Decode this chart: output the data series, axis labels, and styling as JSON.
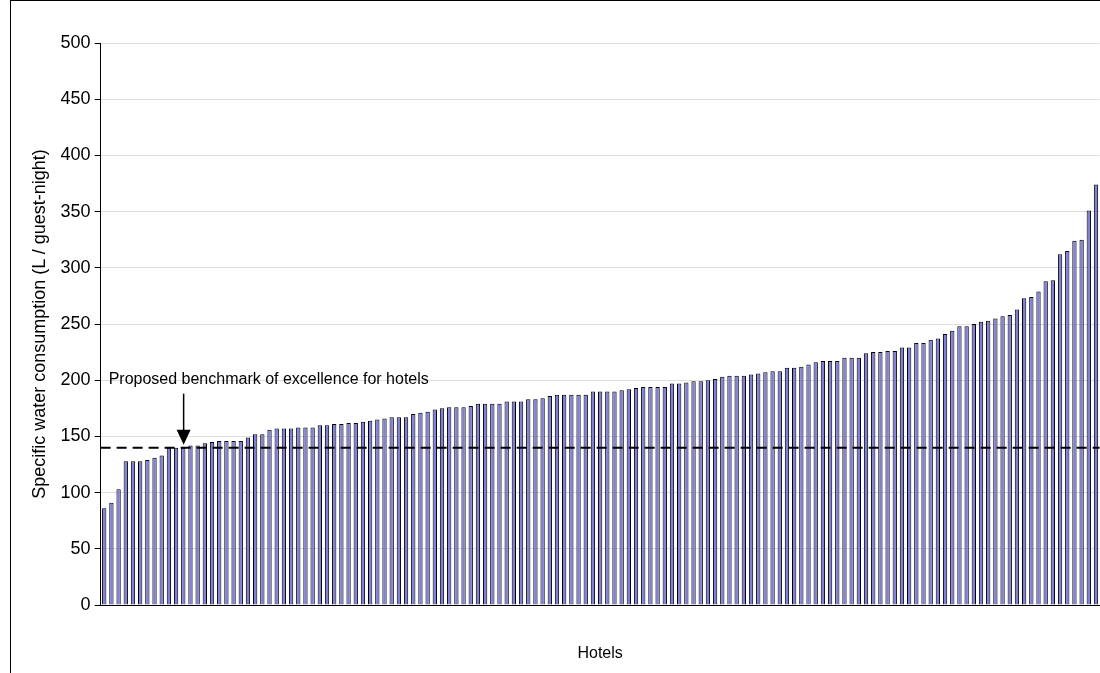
{
  "chart_data": {
    "type": "bar",
    "xlabel": "Hotels",
    "ylabel": "Specific water consumption (L / guest-night)",
    "categories": [
      null,
      null,
      null,
      null,
      null,
      null,
      null,
      null,
      null,
      null,
      null,
      null,
      null,
      null,
      null,
      null,
      null,
      null,
      null,
      null,
      null,
      null,
      null,
      null,
      null,
      null,
      null,
      null,
      null,
      null,
      null,
      null,
      null,
      null,
      null,
      null,
      null,
      null,
      null,
      null,
      null,
      null,
      null,
      null,
      null,
      null,
      null,
      null,
      null,
      null,
      null,
      null,
      null,
      null,
      null,
      null,
      null,
      null,
      null,
      null,
      null,
      null,
      null,
      null,
      null,
      null,
      null,
      null,
      null,
      null,
      null,
      null,
      null,
      null,
      null,
      null,
      null,
      null,
      null,
      null,
      null,
      null,
      null,
      null,
      null,
      null,
      null,
      null,
      null,
      null,
      null,
      null,
      null,
      null,
      null,
      null,
      null,
      null,
      null,
      null,
      null,
      null,
      null,
      null,
      null,
      null,
      null,
      null,
      null,
      null,
      null,
      null,
      null,
      null,
      null,
      null,
      null,
      null,
      null,
      null,
      null,
      null,
      null,
      null,
      null,
      null,
      null,
      null,
      null,
      null,
      null,
      null,
      null,
      null,
      null,
      null,
      null,
      null,
      null
    ],
    "values": [
      86,
      91,
      103,
      128,
      128,
      128,
      129,
      131,
      133,
      140,
      140,
      140,
      142,
      142,
      144,
      145,
      146,
      146,
      146,
      146,
      149,
      152,
      152,
      156,
      157,
      157,
      157,
      158,
      158,
      158,
      160,
      160,
      161,
      161,
      162,
      162,
      163,
      164,
      165,
      166,
      167,
      167,
      167,
      170,
      171,
      172,
      174,
      175,
      176,
      176,
      176,
      177,
      179,
      179,
      179,
      179,
      181,
      181,
      181,
      183,
      183,
      184,
      186,
      187,
      187,
      187,
      187,
      187,
      190,
      190,
      190,
      190,
      191,
      192,
      193,
      194,
      194,
      194,
      194,
      197,
      197,
      198,
      199,
      199,
      200,
      201,
      203,
      204,
      204,
      204,
      205,
      206,
      207,
      208,
      208,
      211,
      211,
      212,
      214,
      216,
      217,
      217,
      217,
      220,
      220,
      220,
      224,
      225,
      225,
      226,
      226,
      229,
      229,
      233,
      233,
      236,
      237,
      241,
      244,
      248,
      248,
      250,
      252,
      253,
      255,
      257,
      258,
      263,
      273,
      274,
      279,
      288,
      289,
      312,
      315,
      324,
      325,
      351,
      374
    ],
    "color": "#8080d8",
    "ylim": [
      0,
      500
    ],
    "yticks": [
      0,
      50,
      100,
      150,
      200,
      250,
      300,
      350,
      400,
      450,
      500
    ],
    "grid": "y",
    "ref_lines": [
      {
        "axis": "y",
        "value": 140,
        "label": "Proposed benchmark of excellence for hotels",
        "color": "#000000",
        "line_style": "dashed"
      }
    ]
  }
}
